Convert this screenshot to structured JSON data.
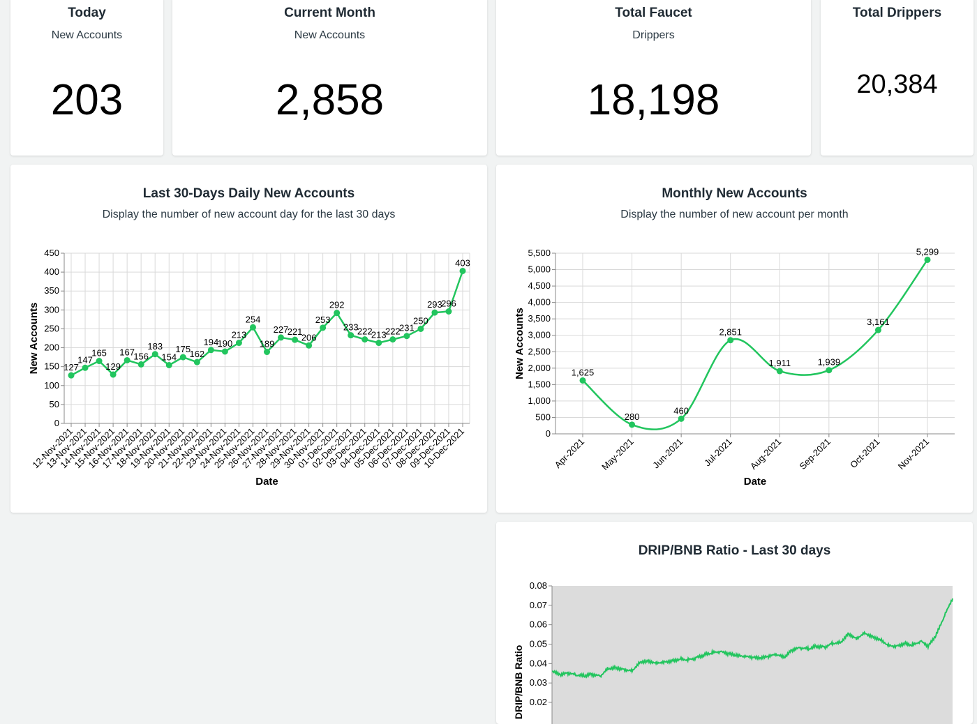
{
  "kpis": [
    {
      "title": "Today",
      "subtitle": "New Accounts",
      "value": "203"
    },
    {
      "title": "Current Month",
      "subtitle": "New Accounts",
      "value": "2,858"
    },
    {
      "title": "Total Faucet",
      "subtitle": "Drippers",
      "value": "18,198"
    },
    {
      "title": "Total Drippers",
      "subtitle": "",
      "value": "20,384"
    }
  ],
  "charts": [
    {
      "title": "Last 30-Days Daily New Accounts",
      "subtitle": "Display the number of new account day for the last 30 days"
    },
    {
      "title": "Monthly New Accounts",
      "subtitle": "Display the number of new account per month"
    },
    {
      "title": "DRIP/BNB Ratio - Last 30 days",
      "subtitle": ""
    }
  ],
  "colors": {
    "line": "#22c55e",
    "plot_bg": "#dcdcdc",
    "grid": "#d9d9d9"
  },
  "chart_data": [
    {
      "type": "line",
      "title": "Last 30-Days Daily New Accounts",
      "xlabel": "Date",
      "ylabel": "New Accounts",
      "ylim": [
        0,
        450
      ],
      "yticks": [
        0,
        50,
        100,
        150,
        200,
        250,
        300,
        350,
        400,
        450
      ],
      "grid": true,
      "categories": [
        "12-Nov-2021",
        "13-Nov-2021",
        "14-Nov-2021",
        "15-Nov-2021",
        "16-Nov-2021",
        "17-Nov-2021",
        "18-Nov-2021",
        "19-Nov-2021",
        "20-Nov-2021",
        "21-Nov-2021",
        "22-Nov-2021",
        "23-Nov-2021",
        "24-Nov-2021",
        "25-Nov-2021",
        "26-Nov-2021",
        "27-Nov-2021",
        "28-Nov-2021",
        "29-Nov-2021",
        "30-Nov-2021",
        "01-Dec-2021",
        "02-Dec-2021",
        "03-Dec-2021",
        "04-Dec-2021",
        "05-Dec-2021",
        "06-Dec-2021",
        "07-Dec-2021",
        "08-Dec-2021",
        "09-Dec-2021",
        "10-Dec-2021"
      ],
      "values": [
        127,
        147,
        165,
        129,
        167,
        156,
        183,
        154,
        175,
        162,
        194,
        190,
        213,
        254,
        189,
        227,
        221,
        206,
        253,
        292,
        233,
        222,
        213,
        222,
        231,
        250,
        293,
        296,
        403
      ]
    },
    {
      "type": "line",
      "title": "Monthly New Accounts",
      "xlabel": "Date",
      "ylabel": "New Accounts",
      "ylim": [
        0,
        5500
      ],
      "yticks": [
        0,
        500,
        1000,
        1500,
        2000,
        2500,
        3000,
        3500,
        4000,
        4500,
        5000,
        5500
      ],
      "grid": true,
      "categories": [
        "Apr-2021",
        "May-2021",
        "Jun-2021",
        "Jul-2021",
        "Aug-2021",
        "Sep-2021",
        "Oct-2021",
        "Nov-2021"
      ],
      "values": [
        1625,
        280,
        460,
        2851,
        1911,
        1939,
        3161,
        5299
      ]
    },
    {
      "type": "line",
      "title": "DRIP/BNB Ratio - Last 30 days",
      "ylabel": "DRIP/BNB Ratio",
      "ylim": [
        0.02,
        0.08
      ],
      "yticks": [
        0.02,
        0.03,
        0.04,
        0.05,
        0.06,
        0.07,
        0.08
      ],
      "grid": false,
      "x": [
        0,
        2,
        4,
        6,
        8,
        10,
        12,
        14,
        16,
        18,
        20,
        22,
        24,
        26,
        28,
        30,
        32,
        34,
        36,
        38,
        40,
        42,
        44,
        46,
        48,
        50,
        52,
        54,
        56,
        58,
        60,
        62,
        64,
        66,
        68,
        70,
        72,
        74,
        76,
        78,
        80,
        82,
        84,
        86,
        88,
        90,
        92,
        94,
        96,
        98,
        100
      ],
      "values": [
        0.036,
        0.034,
        0.035,
        0.034,
        0.0335,
        0.0345,
        0.0335,
        0.0375,
        0.038,
        0.037,
        0.0365,
        0.041,
        0.0415,
        0.0405,
        0.041,
        0.0415,
        0.0425,
        0.042,
        0.043,
        0.0445,
        0.0455,
        0.046,
        0.045,
        0.044,
        0.0435,
        0.043,
        0.0425,
        0.0435,
        0.0445,
        0.043,
        0.047,
        0.048,
        0.0475,
        0.049,
        0.0485,
        0.0505,
        0.051,
        0.0555,
        0.053,
        0.056,
        0.054,
        0.0525,
        0.0495,
        0.049,
        0.0505,
        0.0495,
        0.0515,
        0.049,
        0.055,
        0.0645,
        0.0735
      ]
    }
  ]
}
